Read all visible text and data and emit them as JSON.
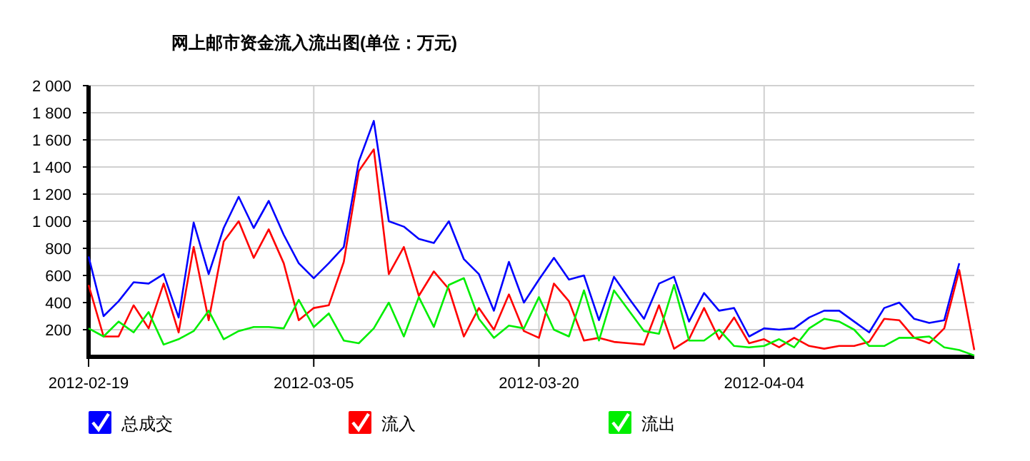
{
  "chart_data": {
    "type": "line",
    "title": "网上邮市资金流入流出图(单位：万元)",
    "x": [
      "2012-02-19",
      "2012-02-20",
      "2012-02-21",
      "2012-02-22",
      "2012-02-23",
      "2012-02-24",
      "2012-02-25",
      "2012-02-26",
      "2012-02-27",
      "2012-02-28",
      "2012-02-29",
      "2012-03-01",
      "2012-03-02",
      "2012-03-03",
      "2012-03-04",
      "2012-03-05",
      "2012-03-06",
      "2012-03-07",
      "2012-03-08",
      "2012-03-09",
      "2012-03-10",
      "2012-03-11",
      "2012-03-12",
      "2012-03-13",
      "2012-03-14",
      "2012-03-15",
      "2012-03-16",
      "2012-03-17",
      "2012-03-18",
      "2012-03-19",
      "2012-03-20",
      "2012-03-21",
      "2012-03-22",
      "2012-03-23",
      "2012-03-24",
      "2012-03-25",
      "2012-03-26",
      "2012-03-27",
      "2012-03-28",
      "2012-03-29",
      "2012-03-30",
      "2012-03-31",
      "2012-04-01",
      "2012-04-02",
      "2012-04-03",
      "2012-04-04",
      "2012-04-05",
      "2012-04-06",
      "2012-04-07",
      "2012-04-08",
      "2012-04-09",
      "2012-04-10",
      "2012-04-11",
      "2012-04-12",
      "2012-04-13",
      "2012-04-14",
      "2012-04-15",
      "2012-04-16",
      "2012-04-17",
      "2012-04-18"
    ],
    "series": [
      {
        "name": "总成交",
        "color": "#0000ff",
        "values": [
          740,
          300,
          410,
          550,
          540,
          610,
          290,
          990,
          610,
          950,
          1180,
          950,
          1150,
          900,
          690,
          580,
          690,
          810,
          1440,
          1740,
          1000,
          960,
          870,
          840,
          1000,
          720,
          610,
          340,
          700,
          400,
          570,
          730,
          570,
          600,
          270,
          590,
          430,
          280,
          540,
          590,
          260,
          470,
          340,
          360,
          150,
          210,
          200,
          210,
          290,
          340,
          340,
          260,
          180,
          360,
          400,
          280,
          250,
          270,
          690,
          null
        ]
      },
      {
        "name": "流入",
        "color": "#ff0000",
        "values": [
          530,
          150,
          150,
          380,
          210,
          540,
          180,
          810,
          270,
          850,
          1000,
          730,
          940,
          690,
          270,
          360,
          380,
          700,
          1370,
          1530,
          610,
          810,
          450,
          630,
          500,
          150,
          360,
          200,
          460,
          190,
          140,
          540,
          410,
          120,
          140,
          110,
          100,
          90,
          380,
          60,
          130,
          360,
          130,
          290,
          100,
          130,
          70,
          140,
          80,
          60,
          80,
          80,
          110,
          280,
          270,
          140,
          100,
          210,
          640,
          50
        ]
      },
      {
        "name": "流出",
        "color": "#00ee00",
        "values": [
          210,
          150,
          260,
          180,
          330,
          90,
          130,
          190,
          340,
          130,
          190,
          220,
          220,
          210,
          420,
          220,
          320,
          120,
          100,
          210,
          400,
          150,
          440,
          220,
          530,
          580,
          280,
          140,
          230,
          210,
          440,
          200,
          150,
          490,
          120,
          490,
          340,
          190,
          170,
          530,
          120,
          120,
          200,
          80,
          70,
          80,
          130,
          70,
          210,
          280,
          260,
          200,
          80,
          80,
          140,
          140,
          150,
          70,
          50,
          10
        ]
      }
    ],
    "xlim": [
      "2012-02-19",
      "2012-04-18"
    ],
    "xticks": [
      "2012-02-19",
      "2012-03-05",
      "2012-03-20",
      "2012-04-04"
    ],
    "ylim": [
      0,
      2000
    ],
    "yticks": [
      200,
      400,
      600,
      800,
      {
        "value": 1000,
        "label": "1 000"
      },
      {
        "value": 1200,
        "label": "1 200"
      },
      {
        "value": 1400,
        "label": "1 400"
      },
      {
        "value": 1600,
        "label": "1 600"
      },
      {
        "value": 1800,
        "label": "1 800"
      },
      {
        "value": 2000,
        "label": "2 000"
      }
    ],
    "grid": true,
    "legend": "bottom",
    "marker": "none",
    "line_style": "solid"
  }
}
